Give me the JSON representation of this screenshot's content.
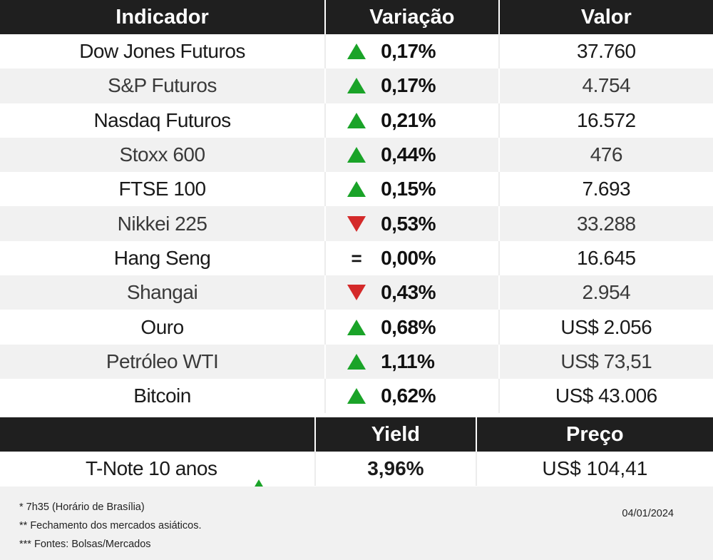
{
  "headers": {
    "indicador": "Indicador",
    "variacao": "Variação",
    "valor": "Valor"
  },
  "rows": [
    {
      "name": "Dow Jones Futuros",
      "direction": "up",
      "change": "0,17%",
      "value": "37.760"
    },
    {
      "name": "S&P Futuros",
      "direction": "up",
      "change": "0,17%",
      "value": "4.754"
    },
    {
      "name": "Nasdaq Futuros",
      "direction": "up",
      "change": "0,21%",
      "value": "16.572"
    },
    {
      "name": "Stoxx 600",
      "direction": "up",
      "change": "0,44%",
      "value": "476"
    },
    {
      "name": "FTSE 100",
      "direction": "up",
      "change": "0,15%",
      "value": "7.693"
    },
    {
      "name": "Nikkei 225",
      "direction": "down",
      "change": "0,53%",
      "value": "33.288"
    },
    {
      "name": "Hang Seng",
      "direction": "equal",
      "change": "0,00%",
      "value": "16.645"
    },
    {
      "name": "Shangai",
      "direction": "down",
      "change": "0,43%",
      "value": "2.954"
    },
    {
      "name": "Ouro",
      "direction": "up",
      "change": "0,68%",
      "value": "US$ 2.056"
    },
    {
      "name": "Petróleo WTI",
      "direction": "up",
      "change": "1,11%",
      "value": "US$ 73,51"
    },
    {
      "name": "Bitcoin",
      "direction": "up",
      "change": "0,62%",
      "value": "US$ 43.006"
    }
  ],
  "bond_headers": {
    "yield": "Yield",
    "preco": "Preço"
  },
  "bond": {
    "name": "T-Note 10 anos",
    "direction": "up",
    "yield": "3,96%",
    "price": "US$ 104,41"
  },
  "equal_symbol": "=",
  "footer": {
    "notes": [
      "* 7h35 (Horário de Brasília)",
      "** Fechamento dos mercados asiáticos.",
      "*** Fontes: Bolsas/Mercados"
    ],
    "date": "04/01/2024"
  },
  "colors": {
    "up": "#1aa328",
    "down": "#d42a2a",
    "header_bg": "#1f1f1f",
    "stripe": "#f1f1f1"
  }
}
